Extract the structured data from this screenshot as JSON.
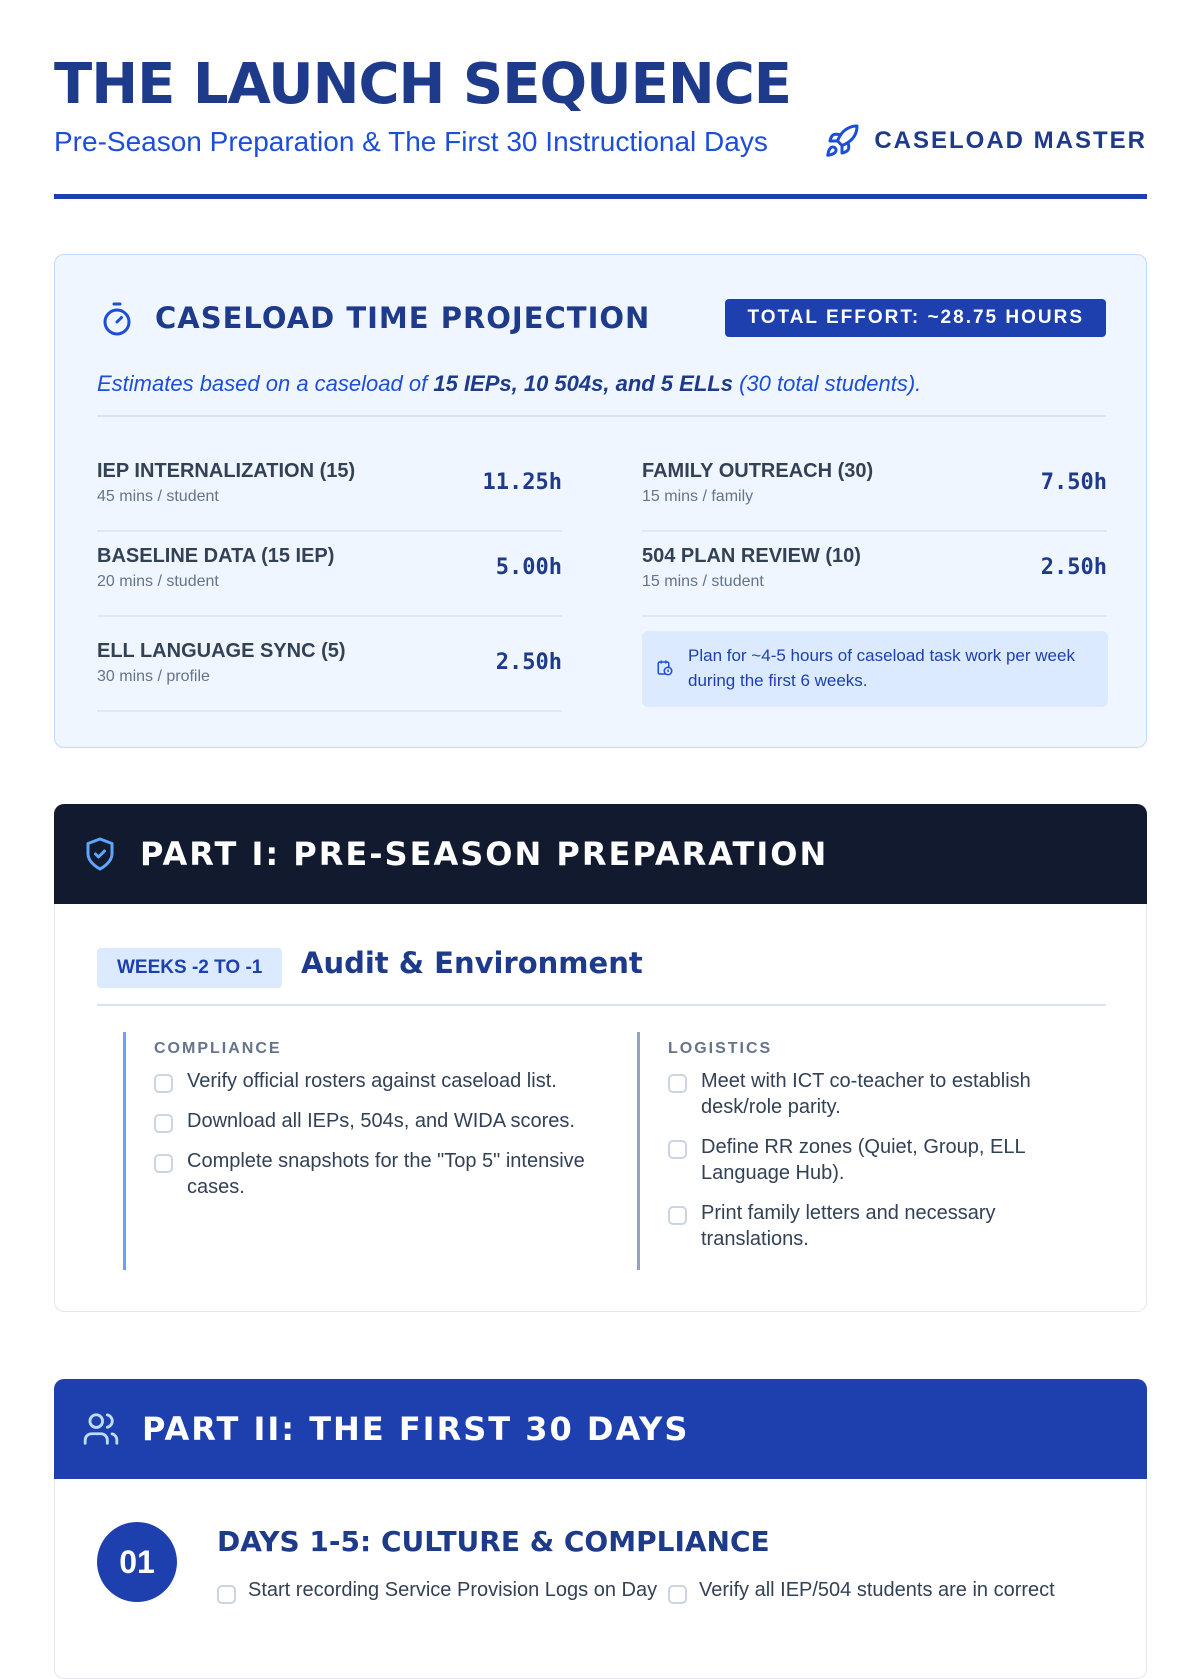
{
  "header": {
    "title": "THE LAUNCH SEQUENCE",
    "subtitle": "Pre-Season Preparation & The First 30 Instructional Days",
    "brand": "CASELOAD MASTER"
  },
  "projection": {
    "title": "CASELOAD TIME PROJECTION",
    "total": "TOTAL EFFORT: ~28.75 HOURS",
    "note_pre": "Estimates based on a caseload of ",
    "note_bold": "15 IEPs, 10 504s, and 5 ELLs",
    "note_post": " (30 total students).",
    "stats": [
      {
        "label": "IEP INTERNALIZATION (15)",
        "sub": "45 mins / student",
        "value": "11.25h"
      },
      {
        "label": "FAMILY OUTREACH (30)",
        "sub": "15 mins / family",
        "value": "7.50h"
      },
      {
        "label": "BASELINE DATA (15 IEP)",
        "sub": "20 mins / student",
        "value": "5.00h"
      },
      {
        "label": "504 PLAN REVIEW (10)",
        "sub": "15 mins / student",
        "value": "2.50h"
      },
      {
        "label": "ELL LANGUAGE SYNC (5)",
        "sub": "30 mins / profile",
        "value": "2.50h"
      }
    ],
    "tip": "Plan for ~4-5 hours of caseload task work per week during the first 6 weeks."
  },
  "part1": {
    "title": "PART I: PRE-SEASON PREPARATION",
    "badge": "WEEKS -2 TO -1",
    "section": "Audit & Environment",
    "compliance": {
      "heading": "COMPLIANCE",
      "items": [
        "Verify official rosters against caseload list.",
        "Download all IEPs, 504s, and WIDA scores.",
        "Complete snapshots for the \"Top 5\" intensive cases."
      ]
    },
    "logistics": {
      "heading": "LOGISTICS",
      "items": [
        "Meet with ICT co-teacher to establish desk/role parity.",
        "Define RR zones (Quiet, Group, ELL Language Hub).",
        "Print family letters and necessary translations."
      ]
    }
  },
  "part2": {
    "title": "PART II: THE FIRST 30 DAYS",
    "num": "01",
    "phase": "DAYS 1-5: CULTURE & COMPLIANCE",
    "items": [
      "Start recording Service Provision Logs on Day",
      "Verify all IEP/504 students are in correct"
    ]
  }
}
